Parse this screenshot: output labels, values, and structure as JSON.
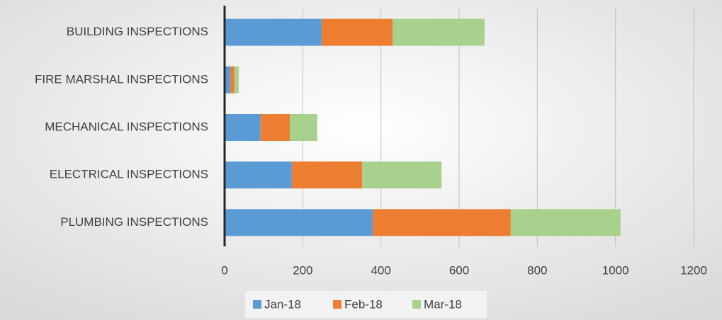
{
  "chart_data": {
    "type": "stacked_barh",
    "categories": [
      "BUILDING INSPECTIONS",
      "FIRE MARSHAL INSPECTIONS",
      "MECHANICAL INSPECTIONS",
      "ELECTRICAL INSPECTIONS",
      "PLUMBING INSPECTIONS"
    ],
    "series": [
      {
        "name": "Jan-18",
        "color": "#5b9bd5",
        "values": [
          248,
          15,
          92,
          172,
          379
        ]
      },
      {
        "name": "Feb-18",
        "color": "#ed7d31",
        "values": [
          182,
          10,
          75,
          180,
          353
        ]
      },
      {
        "name": "Mar-18",
        "color": "#a9d18e",
        "values": [
          235,
          11,
          70,
          203,
          281
        ]
      }
    ],
    "xlim": [
      0,
      1200
    ],
    "xticks": [
      0,
      200,
      400,
      600,
      800,
      1000,
      1200
    ],
    "grid": true,
    "legend": "bottom"
  }
}
